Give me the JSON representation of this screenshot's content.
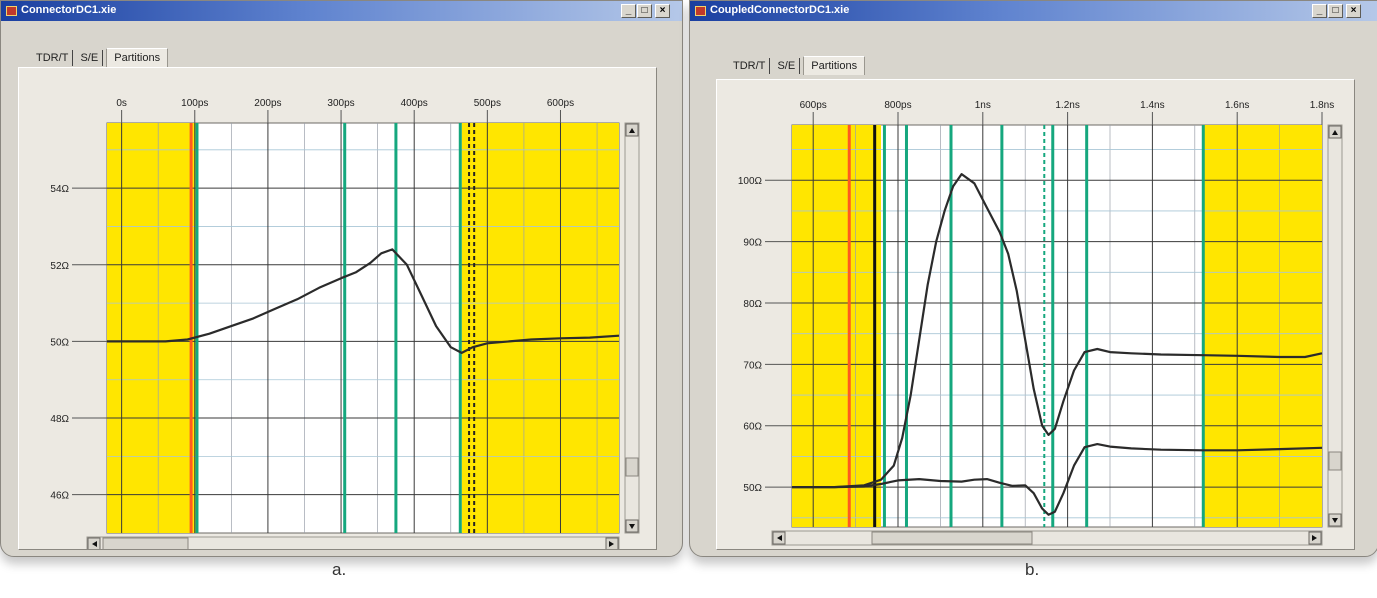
{
  "windows": [
    {
      "title": "ConnectorDC1.xie",
      "tabs": [
        "TDR/T",
        "S/E",
        "Partitions"
      ],
      "active_tab": "Partitions",
      "caption": "a.",
      "buttons": [
        "_",
        "□",
        "×"
      ]
    },
    {
      "title": "CoupledConnectorDC1.xie",
      "tabs": [
        "TDR/T",
        "S/E",
        "Partitions"
      ],
      "active_tab": "Partitions",
      "caption": "b.",
      "buttons": [
        "_",
        "□",
        "×"
      ]
    }
  ],
  "chart_data": [
    {
      "type": "line",
      "title": "",
      "x_ticks": [
        "0s",
        "100ps",
        "200ps",
        "300ps",
        "400ps",
        "500ps",
        "600ps"
      ],
      "y_ticks": [
        "54Ω",
        "52Ω",
        "50Ω",
        "48Ω",
        "46Ω"
      ],
      "xlim_ps": [
        -20,
        680
      ],
      "ylim_ohm": [
        45,
        55.7
      ],
      "regions": [
        {
          "color": "#ffe600",
          "from_ps": -20,
          "to_ps": 105
        },
        {
          "color": "#ffe600",
          "from_ps": 465,
          "to_ps": 680
        }
      ],
      "markers": [
        {
          "x_ps": 95,
          "color": "#ff5a1f",
          "style": "solid"
        },
        {
          "x_ps": 103,
          "color": "#15a77e",
          "style": "solid"
        },
        {
          "x_ps": 305,
          "color": "#15a77e",
          "style": "solid"
        },
        {
          "x_ps": 375,
          "color": "#15a77e",
          "style": "solid"
        },
        {
          "x_ps": 463,
          "color": "#15a77e",
          "style": "solid"
        },
        {
          "x_ps": 475,
          "color": "#222222",
          "style": "dashed"
        },
        {
          "x_ps": 482,
          "color": "#222222",
          "style": "dashed"
        }
      ],
      "series": [
        {
          "x_ps": [
            -20,
            60,
            90,
            120,
            150,
            180,
            210,
            240,
            270,
            300,
            320,
            340,
            355,
            370,
            390,
            410,
            430,
            450,
            465,
            480,
            500,
            530,
            560,
            600,
            640,
            680
          ],
          "y_ohm": [
            50,
            50,
            50.05,
            50.2,
            50.4,
            50.6,
            50.85,
            51.1,
            51.4,
            51.65,
            51.8,
            52.05,
            52.3,
            52.4,
            52.0,
            51.2,
            50.4,
            49.85,
            49.7,
            49.85,
            49.95,
            50.0,
            50.05,
            50.08,
            50.1,
            50.15
          ]
        }
      ]
    },
    {
      "type": "line",
      "title": "",
      "x_ticks": [
        "600ps",
        "800ps",
        "1ns",
        "1.2ns",
        "1.4ns",
        "1.6ns",
        "1.8ns"
      ],
      "y_ticks": [
        "100Ω",
        "90Ω",
        "80Ω",
        "70Ω",
        "60Ω",
        "50Ω"
      ],
      "xlim_ps": [
        550,
        1800
      ],
      "ylim_ohm": [
        43.5,
        109
      ],
      "regions": [
        {
          "color": "#ffe600",
          "from_ps": 550,
          "to_ps": 760
        },
        {
          "color": "#ffe600",
          "from_ps": 1520,
          "to_ps": 1800
        }
      ],
      "markers": [
        {
          "x_ps": 685,
          "color": "#ff5a1f",
          "style": "solid"
        },
        {
          "x_ps": 745,
          "color": "#111111",
          "style": "solid"
        },
        {
          "x_ps": 768,
          "color": "#15a77e",
          "style": "solid"
        },
        {
          "x_ps": 820,
          "color": "#15a77e",
          "style": "solid"
        },
        {
          "x_ps": 925,
          "color": "#15a77e",
          "style": "solid"
        },
        {
          "x_ps": 1045,
          "color": "#15a77e",
          "style": "solid"
        },
        {
          "x_ps": 1145,
          "color": "#15a77e",
          "style": "dashed"
        },
        {
          "x_ps": 1165,
          "color": "#15a77e",
          "style": "solid"
        },
        {
          "x_ps": 1245,
          "color": "#15a77e",
          "style": "solid"
        },
        {
          "x_ps": 1520,
          "color": "#15a77e",
          "style": "solid"
        }
      ],
      "series": [
        {
          "x_ps": [
            550,
            650,
            720,
            760,
            790,
            810,
            830,
            850,
            870,
            890,
            910,
            930,
            950,
            980,
            1010,
            1040,
            1060,
            1080,
            1100,
            1120,
            1140,
            1155,
            1170,
            1190,
            1215,
            1240,
            1270,
            1300,
            1350,
            1420,
            1520,
            1600,
            1700,
            1760,
            1800
          ],
          "y_ohm": [
            50,
            50,
            50.3,
            51.2,
            53.5,
            58,
            65,
            74,
            83,
            90,
            95,
            99,
            101,
            99.5,
            95.5,
            91.5,
            88,
            82,
            74,
            66,
            60,
            58.5,
            59.5,
            64,
            69,
            72,
            72.5,
            72,
            71.8,
            71.6,
            71.5,
            71.4,
            71.2,
            71.2,
            71.8
          ]
        },
        {
          "x_ps": [
            550,
            650,
            720,
            760,
            800,
            850,
            900,
            950,
            980,
            1010,
            1040,
            1070,
            1100,
            1120,
            1140,
            1155,
            1170,
            1190,
            1215,
            1240,
            1270,
            1300,
            1350,
            1420,
            1520,
            1600,
            1700,
            1800
          ],
          "y_ohm": [
            50,
            50,
            50.1,
            50.5,
            51.1,
            51.3,
            51.0,
            50.9,
            51.2,
            51.3,
            50.7,
            50.2,
            50.3,
            49.0,
            46.5,
            45.5,
            46.0,
            49.0,
            53.5,
            56.5,
            57.0,
            56.6,
            56.3,
            56.1,
            56.0,
            56.0,
            56.2,
            56.4
          ]
        }
      ]
    }
  ]
}
